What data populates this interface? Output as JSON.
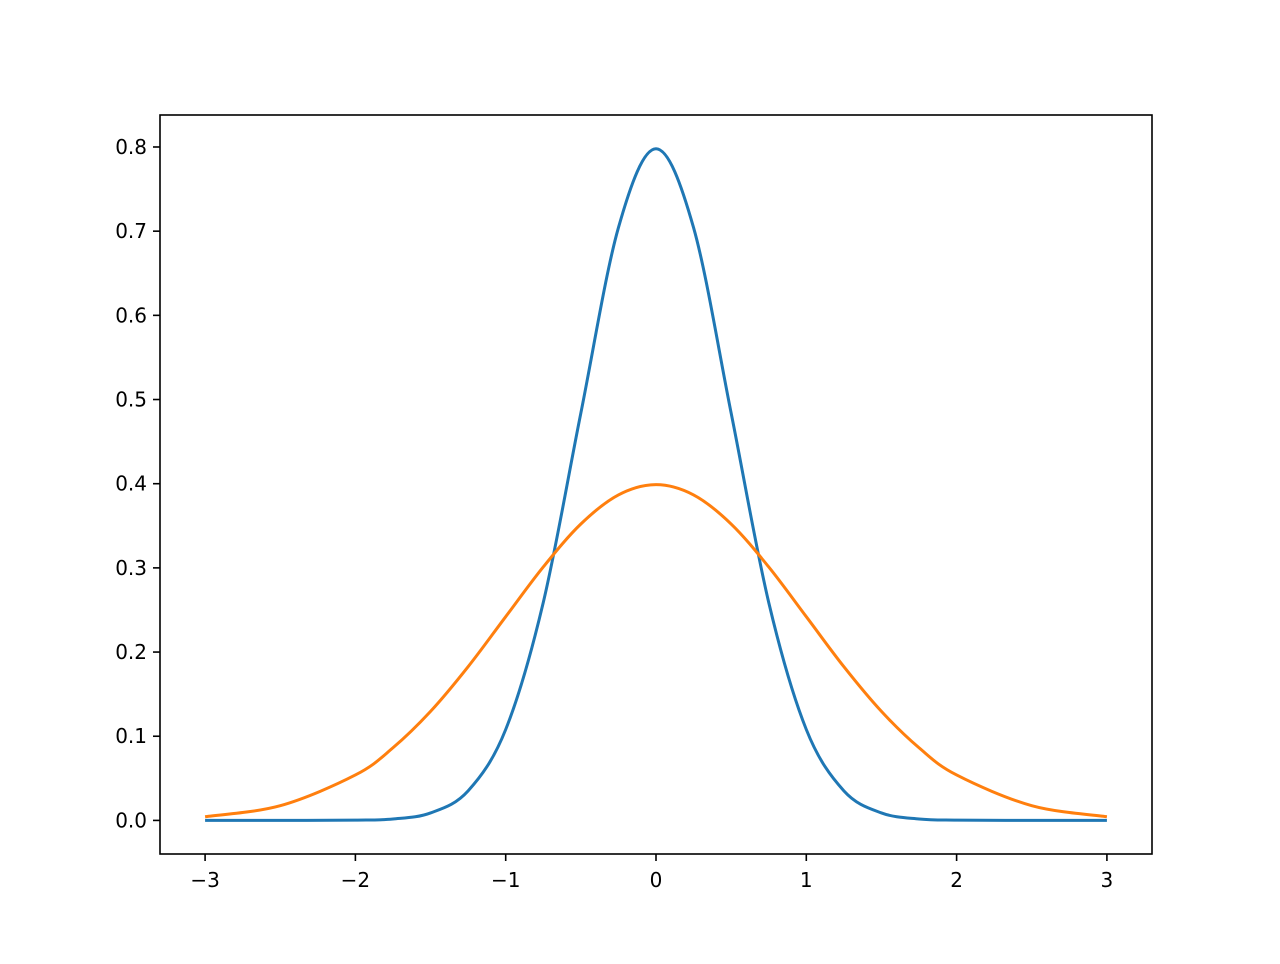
{
  "chart_data": {
    "type": "line",
    "title": "",
    "xlabel": "",
    "ylabel": "",
    "xlim": [
      -3.3,
      3.3
    ],
    "ylim": [
      -0.0399,
      0.838
    ],
    "xticks": [
      -3,
      -2,
      -1,
      0,
      1,
      2,
      3
    ],
    "xtick_labels": [
      "−3",
      "−2",
      "−1",
      "0",
      "1",
      "2",
      "3"
    ],
    "yticks": [
      0.0,
      0.1,
      0.2,
      0.3,
      0.4,
      0.5,
      0.6,
      0.7,
      0.8
    ],
    "ytick_labels": [
      "0.0",
      "0.1",
      "0.2",
      "0.3",
      "0.4",
      "0.5",
      "0.6",
      "0.7",
      "0.8"
    ],
    "grid": false,
    "legend": "none",
    "x": [
      -3.0,
      -2.5,
      -2.0,
      -1.75,
      -1.5,
      -1.25,
      -1.0,
      -0.75,
      -0.5,
      -0.25,
      0.0,
      0.25,
      0.5,
      0.75,
      1.0,
      1.25,
      1.5,
      1.75,
      2.0,
      2.5,
      3.0
    ],
    "series": [
      {
        "color": "#1f77b4",
        "values": [
          0.0,
          0.0,
          0.0003,
          0.0017,
          0.0089,
          0.0351,
          0.108,
          0.2589,
          0.4839,
          0.7041,
          0.7979,
          0.7041,
          0.4839,
          0.2589,
          0.108,
          0.0351,
          0.0089,
          0.0017,
          0.0003,
          0.0,
          0.0
        ]
      },
      {
        "color": "#ff7f0e",
        "values": [
          0.0044,
          0.0175,
          0.054,
          0.0863,
          0.1295,
          0.1826,
          0.242,
          0.3011,
          0.3521,
          0.3867,
          0.3989,
          0.3867,
          0.3521,
          0.3011,
          0.242,
          0.1826,
          0.1295,
          0.0863,
          0.054,
          0.0175,
          0.0044
        ]
      }
    ]
  }
}
